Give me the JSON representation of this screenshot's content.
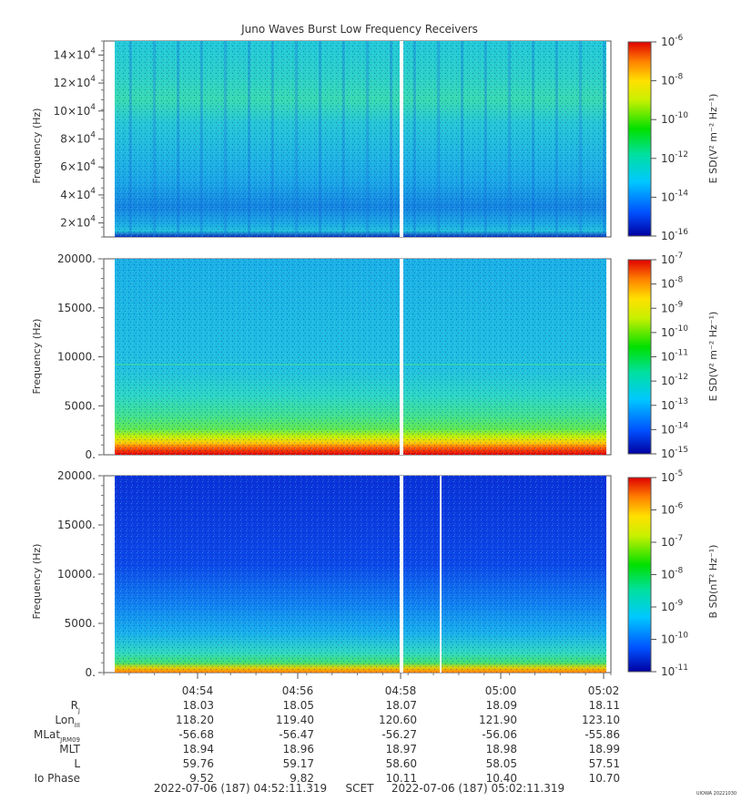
{
  "title": "Juno Waves Burst Low Frequency Receivers",
  "watermark": "UIOWA 20221030",
  "chart_data": [
    {
      "type": "heatmap",
      "ylabel": "Frequency (Hz)",
      "ylim": [
        10000,
        150000
      ],
      "yticks": [
        {
          "v": 20000,
          "mant": "2×10",
          "exp": "4"
        },
        {
          "v": 40000,
          "mant": "4×10",
          "exp": "4"
        },
        {
          "v": 60000,
          "mant": "6×10",
          "exp": "4"
        },
        {
          "v": 80000,
          "mant": "8×10",
          "exp": "4"
        },
        {
          "v": 100000,
          "mant": "10×10",
          "exp": "4"
        },
        {
          "v": 120000,
          "mant": "12×10",
          "exp": "4"
        },
        {
          "v": 140000,
          "mant": "14×10",
          "exp": "4"
        }
      ],
      "colorbar": {
        "label": "E SD(V² m⁻² Hz⁻¹)",
        "ticks": [
          {
            "v": -6,
            "text": "10",
            "exp": "-6"
          },
          {
            "v": -8,
            "text": "10",
            "exp": "-8"
          },
          {
            "v": -10,
            "text": "10",
            "exp": "-10"
          },
          {
            "v": -12,
            "text": "10",
            "exp": "-12"
          },
          {
            "v": -14,
            "text": "10",
            "exp": "-14"
          },
          {
            "v": -16,
            "text": "10",
            "exp": "-16"
          }
        ]
      }
    },
    {
      "type": "heatmap",
      "ylabel": "Frequency (Hz)",
      "ylim": [
        0,
        20000
      ],
      "yticks": [
        {
          "v": 0,
          "text": "0."
        },
        {
          "v": 5000,
          "text": "5000."
        },
        {
          "v": 10000,
          "text": "10000."
        },
        {
          "v": 15000,
          "text": "15000."
        },
        {
          "v": 20000,
          "text": "20000."
        }
      ],
      "colorbar": {
        "label": "E SD(V² m⁻² Hz⁻¹)",
        "ticks": [
          {
            "v": -7,
            "text": "10",
            "exp": "-7"
          },
          {
            "v": -8,
            "text": "10",
            "exp": "-8"
          },
          {
            "v": -9,
            "text": "10",
            "exp": "-9"
          },
          {
            "v": -10,
            "text": "10",
            "exp": "-10"
          },
          {
            "v": -11,
            "text": "10",
            "exp": "-11"
          },
          {
            "v": -12,
            "text": "10",
            "exp": "-12"
          },
          {
            "v": -13,
            "text": "10",
            "exp": "-13"
          },
          {
            "v": -14,
            "text": "10",
            "exp": "-14"
          },
          {
            "v": -15,
            "text": "10",
            "exp": "-15"
          }
        ]
      }
    },
    {
      "type": "heatmap",
      "ylabel": "Frequency (Hz)",
      "ylim": [
        0,
        20000
      ],
      "yticks": [
        {
          "v": 0,
          "text": "0."
        },
        {
          "v": 5000,
          "text": "5000."
        },
        {
          "v": 10000,
          "text": "10000."
        },
        {
          "v": 15000,
          "text": "15000."
        },
        {
          "v": 20000,
          "text": "20000."
        }
      ],
      "colorbar": {
        "label": "B SD(nT² Hz⁻¹)",
        "ticks": [
          {
            "v": -5,
            "text": "10",
            "exp": "-5"
          },
          {
            "v": -6,
            "text": "10",
            "exp": "-6"
          },
          {
            "v": -7,
            "text": "10",
            "exp": "-7"
          },
          {
            "v": -8,
            "text": "10",
            "exp": "-8"
          },
          {
            "v": -9,
            "text": "10",
            "exp": "-9"
          },
          {
            "v": -10,
            "text": "10",
            "exp": "-10"
          },
          {
            "v": -11,
            "text": "10",
            "exp": "-11"
          }
        ]
      }
    }
  ],
  "time_axis": {
    "ticks": [
      "04:54",
      "04:56",
      "04:58",
      "05:00",
      "05:02"
    ],
    "rows": [
      {
        "label": "R",
        "sub": "J",
        "values": [
          "18.03",
          "18.05",
          "18.07",
          "18.09",
          "18.11"
        ]
      },
      {
        "label": "Lon",
        "sub": "III",
        "values": [
          "118.20",
          "119.40",
          "120.60",
          "121.90",
          "123.10"
        ]
      },
      {
        "label": "MLat",
        "sub": "JRM09",
        "values": [
          "-56.68",
          "-56.47",
          "-56.27",
          "-56.06",
          "-55.86"
        ]
      },
      {
        "label": "MLT",
        "sub": "",
        "values": [
          "18.94",
          "18.96",
          "18.97",
          "18.98",
          "18.99"
        ]
      },
      {
        "label": "L",
        "sub": "",
        "values": [
          "59.76",
          "59.17",
          "58.60",
          "58.05",
          "57.51"
        ]
      },
      {
        "label": "Io Phase",
        "sub": "",
        "values": [
          "9.52",
          "9.82",
          "10.11",
          "10.40",
          "10.70"
        ]
      }
    ],
    "start": "2022-07-06 (187) 04:52:11.319",
    "scet": "SCET",
    "end": "2022-07-06 (187) 05:02:11.319"
  }
}
